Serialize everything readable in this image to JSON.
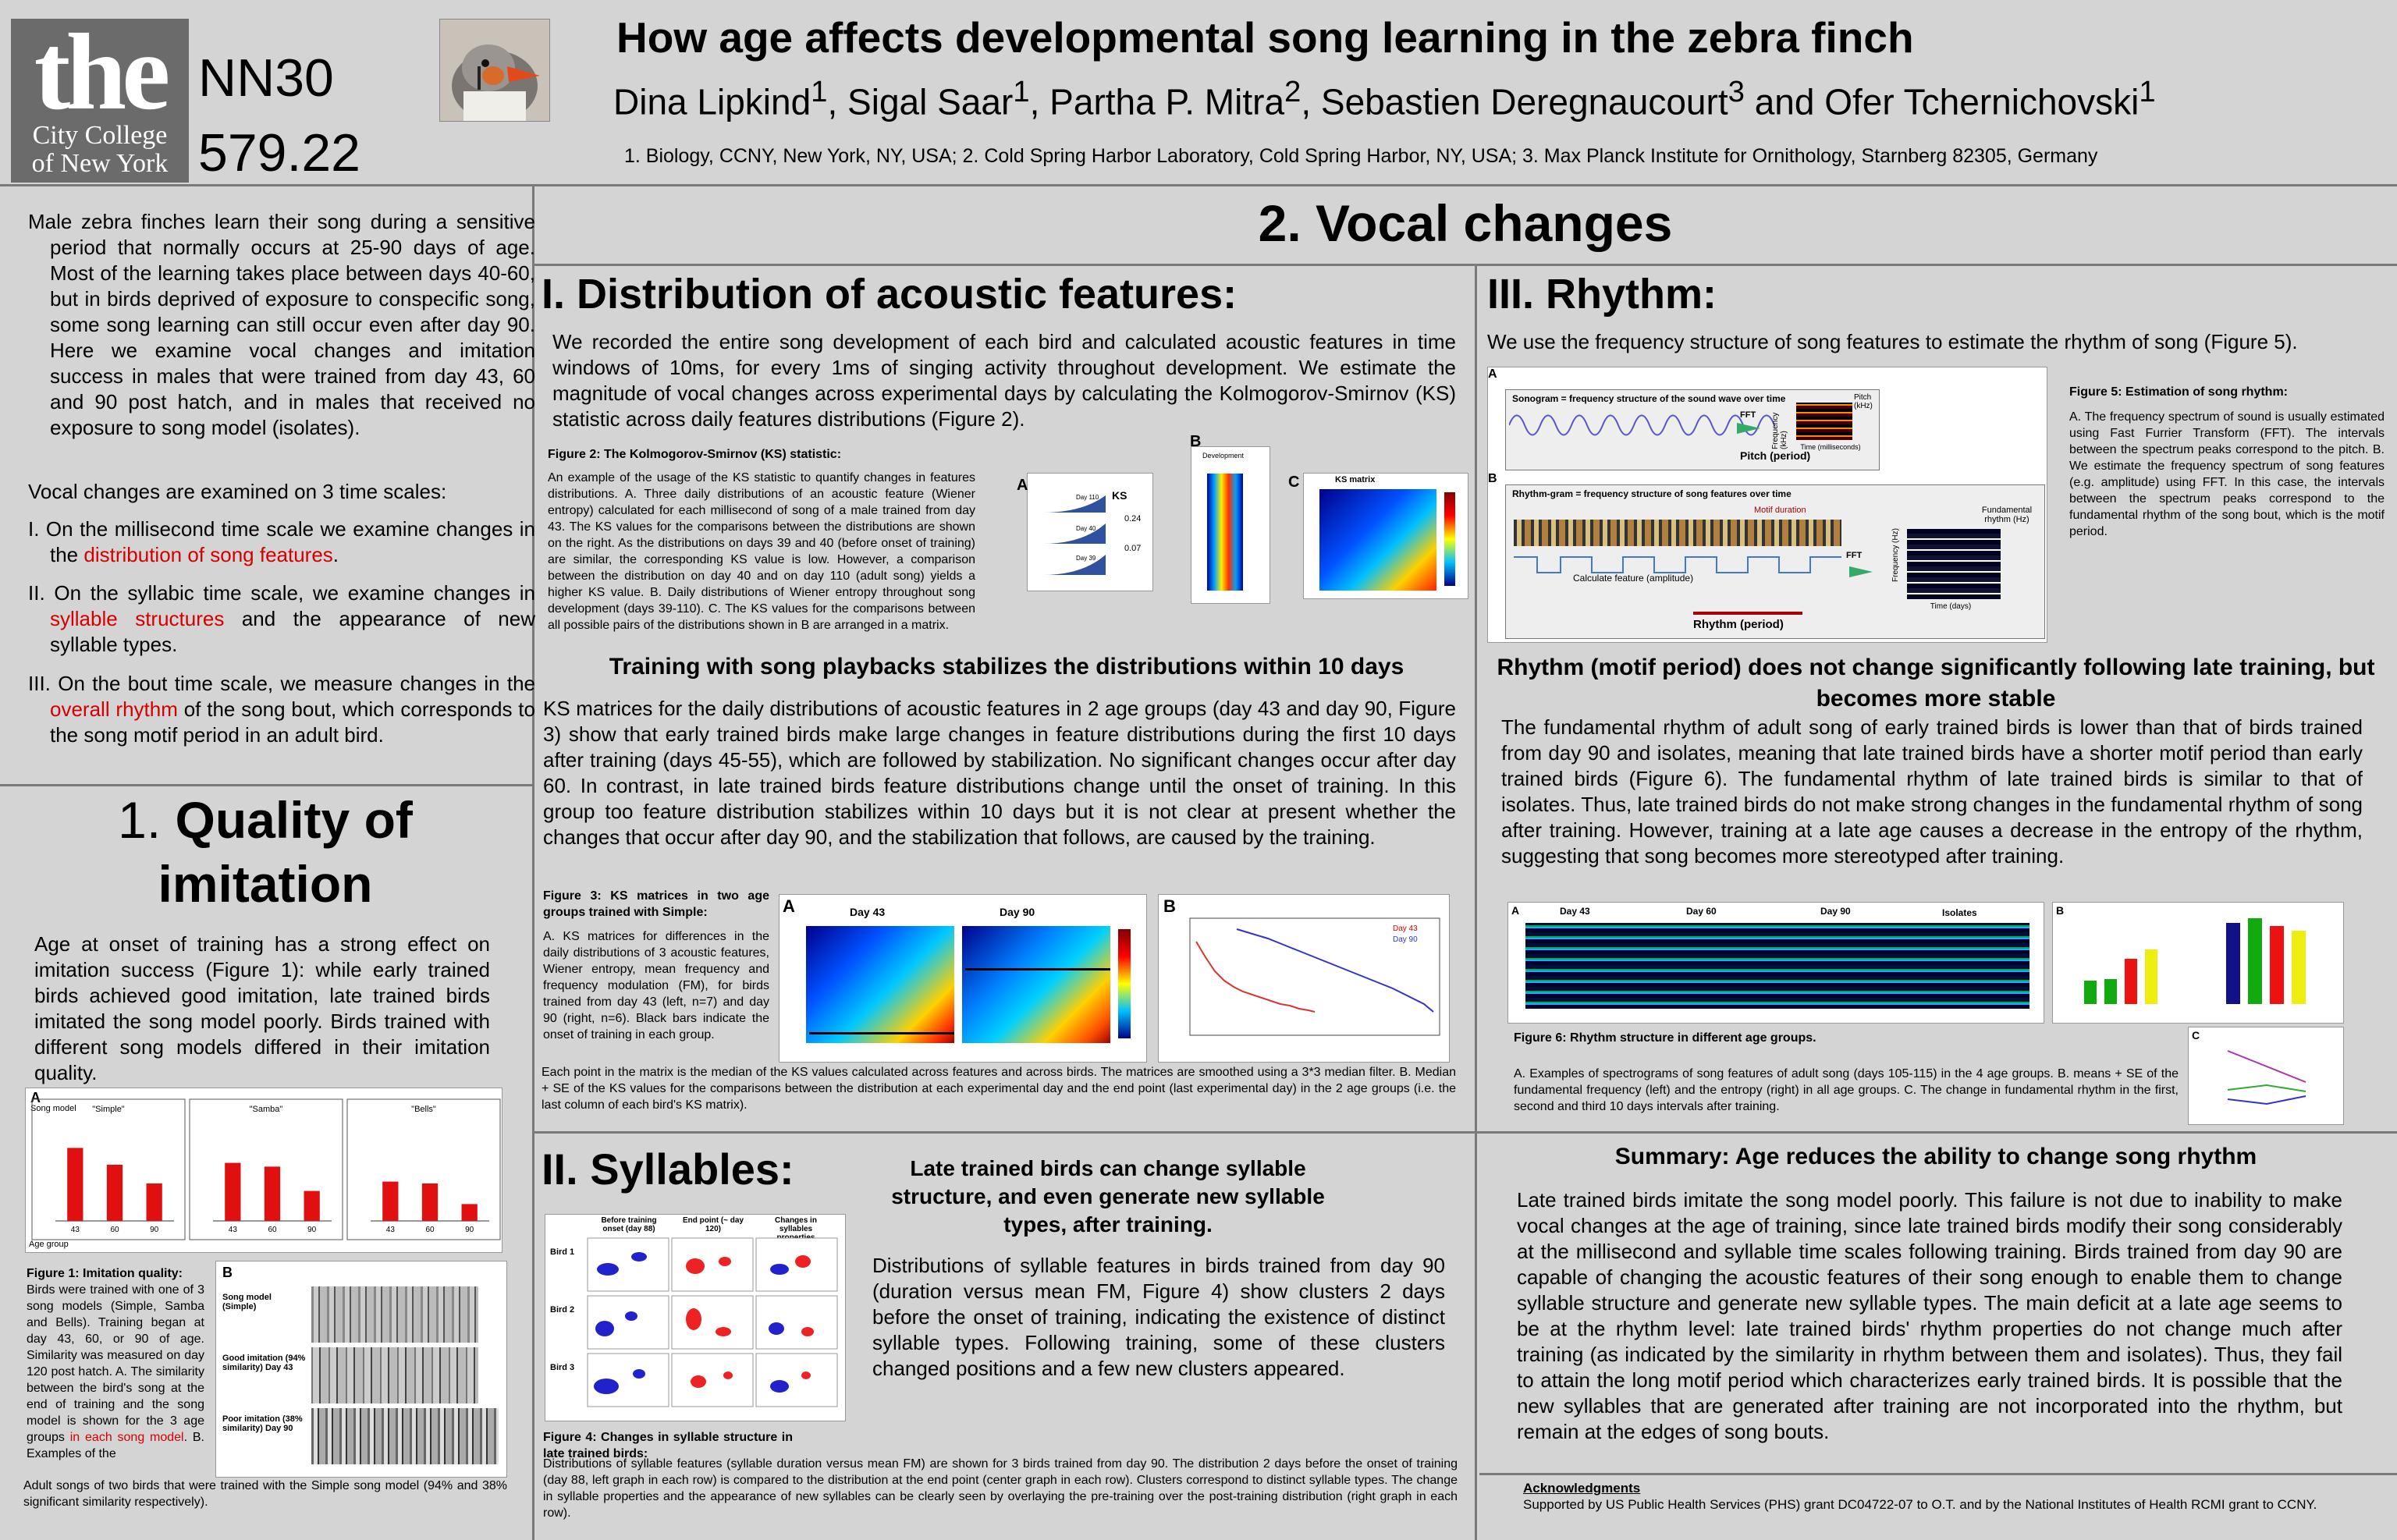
{
  "header": {
    "logo_big": "the",
    "logo_line1": "City College",
    "logo_line2": "of New York",
    "code1": "NN30",
    "code2": "579.22",
    "title": "How age affects developmental song learning in the zebra finch",
    "authors": "Dina Lipkind1, Sigal Saar1, Partha P. Mitra2, Sebastien Deregnaucourt3 and Ofer Tchernichovski1",
    "affiliations": "1. Biology, CCNY, New York, NY, USA; 2. Cold Spring Harbor Laboratory, Cold Spring Harbor, NY, USA; 3. Max Planck Institute for Ornithology, Starnberg 82305, Germany"
  },
  "intro": {
    "p1": "Male zebra finches learn their song during a sensitive period that normally occurs at 25-90 days of age. Most of the learning takes place between days 40-60, but in birds deprived of exposure to conspecific song, some song learning can still occur even after day 90. Here we examine vocal changes and imitation success in males that were trained from day 43, 60 and 90 post hatch, and in males that received no exposure to song model (isolates).",
    "p2": "Vocal changes are examined on 3 time scales:",
    "i1a": "I. On the millisecond time scale we examine changes in the ",
    "i1r": "distribution of song features",
    "i1b": ".",
    "i2a": "II. On the syllabic time scale, we examine changes in ",
    "i2r": "syllable structures",
    "i2b": " and the appearance of new syllable types.",
    "i3a": "III. On the bout time scale, we measure changes in the ",
    "i3r": "overall rhythm",
    "i3b": " of the song bout, which corresponds to the song motif period in an adult bird."
  },
  "quality": {
    "heading_num": "1.",
    "heading": "Quality of imitation",
    "text": "Age at onset of training has a strong effect on imitation success (Figure 1): while early trained birds achieved good imitation, late trained birds imitated the song model poorly. Birds trained with different song models differed in their imitation quality.",
    "fig_label_a": "A",
    "song_model": "Song model",
    "panels": [
      "\"Simple\"",
      "\"Samba\"",
      "\"Bells\""
    ],
    "xticks": [
      "43",
      "60",
      "90"
    ],
    "age_group": "Age group",
    "fig_label_b": "B",
    "b_rows": [
      "Song model (Simple)",
      "Good imitation (94% similarity) Day 43",
      "Poor imitation (38% similarity) Day 90"
    ],
    "cap_title": "Figure 1: Imitation quality:",
    "cap_a": "Birds were trained with one of 3 song models (Simple, Samba and Bells). Training began at day 43, 60, or 90 of age. Similarity was measured on day 120 post hatch. A. The similarity between the bird's song at the end of training and the song model is shown for the 3 age groups ",
    "cap_red": "in each song model",
    "cap_b": ". B. Examples of the",
    "cap_c": "Adult songs of two birds that were trained with the Simple song model (94% and 38% significant similarity respectively)."
  },
  "vocal_title": "2. Vocal changes",
  "distribution": {
    "heading": "I. Distribution of acoustic features:",
    "text": "We recorded the entire song development of each bird and calculated acoustic features in time windows of 10ms, for every 1ms of singing activity throughout development. We estimate the magnitude of vocal changes across experimental days by calculating the Kolmogorov-Smirnov (KS) statistic across daily features distributions (Figure 2).",
    "fig2_title": "Figure 2: The Kolmogorov-Smirnov (KS) statistic:",
    "fig2_text": "An example of the usage of the KS statistic to quantify changes in features distributions. A. Three daily distributions of an acoustic feature (Wiener entropy) calculated for each millisecond of song of a male trained from day 43. The KS values for the comparisons between the distributions are shown on the right. As the distributions on days 39 and 40 (before onset of training) are similar, the corresponding KS value is low. However, a comparison between the distribution on day 40 and on day 110 (adult song) yields a higher KS value. B. Daily distributions of Wiener entropy throughout song development (days 39-110). C. The KS values for the comparisons between all possible pairs of the distributions shown in B are arranged in a matrix.",
    "fig2_a": "A",
    "fig2_b": "B",
    "fig2_c": "C",
    "ks": "KS",
    "ks1": "0.24",
    "ks2": "0.07",
    "days": [
      "Day 110",
      "Day 40",
      "Day 39"
    ],
    "development": "Development",
    "ks_matrix": "KS matrix",
    "sub_heading": "Training with song playbacks stabilizes the distributions within 10 days",
    "text2": "KS matrices for the daily distributions of acoustic features in 2 age groups (day 43 and day 90, Figure 3) show that early trained birds make large changes in feature distributions during the first 10 days after training (days 45-55), which are followed by stabilization. No significant changes occur after day 60. In contrast, in late trained birds feature distributions change until the onset of training. In this group too feature distribution stabilizes within 10 days but it is not clear at present whether the changes that occur after day 90, and the stabilization that follows, are caused by the training.",
    "fig3_title": "Figure 3: KS matrices in two age groups trained with Simple:",
    "fig3_text": "A. KS matrices for differences in the daily distributions of 3 acoustic features, Wiener entropy, mean frequency and frequency modulation (FM), for birds trained from day 43 (left, n=7) and day 90 (right, n=6). Black bars indicate the onset of training in each group.",
    "fig3_text2": "Each point in the matrix is the median of the KS values calculated across features and across birds. The matrices are smoothed using a 3*3 median filter. B. Median + SE of the KS values for the comparisons between the distribution at each experimental day and the end point (last experimental day) in the 2 age groups (i.e. the last column of each bird's KS matrix).",
    "fig3_a": "A",
    "fig3_b": "B",
    "day43": "Day 43",
    "day90": "Day 90",
    "legend43": "Day 43",
    "legend90": "Day 90"
  },
  "syllables": {
    "heading": "II. Syllables:",
    "sub_heading": "Late trained birds can change syllable structure, and even generate new syllable types, after training.",
    "text": "Distributions of syllable features in birds trained from day 90 (duration versus mean FM, Figure 4) show clusters 2 days before the onset of training, indicating the existence of distinct syllable types. Following training, some of these clusters changed positions and a few new clusters appeared.",
    "col_heads": [
      "Before training onset (day 88)",
      "End point (~ day 120)",
      "Changes in syllables properties"
    ],
    "rows": [
      "Bird 1",
      "Bird 2",
      "Bird 3"
    ],
    "fig4_title": "Figure 4: Changes in syllable structure in late trained birds:",
    "fig4_text": "Distributions of syllable features (syllable duration versus mean FM) are shown for 3 birds trained from day 90. The distribution 2 days before the onset of training (day 88, left graph in each row) is compared to the distribution at the end point (center graph in each row). Clusters correspond to distinct syllable types. The change in syllable properties and the appearance of new syllables can be clearly seen by overlaying the pre-training over the post-training distribution (right graph in each row)."
  },
  "rhythm": {
    "heading": "III. Rhythm:",
    "text": "We use the frequency structure of song features to estimate the rhythm of song (Figure 5).",
    "fig5_a": "A",
    "fig5_b": "B",
    "sonogram_label": "Sonogram = frequency structure of the sound wave over time",
    "pitch_period": "Pitch (period)",
    "fft": "FFT",
    "freq": "Frequency (kHz)",
    "pitch": "Pitch (kHz)",
    "time_ms": "Time (milliseconds)",
    "rhythmgram_label": "Rhythm-gram = frequency structure of song features over time",
    "motif_duration": "Motif duration",
    "calc_feature": "Calculate feature (amplitude)",
    "rhythm_period": "Rhythm (period)",
    "fund_rhythm": "Fundamental rhythm (Hz)",
    "freq_hz": "Frequency (Hz)",
    "time_days": "Time (days)",
    "fig5_title": "Figure 5: Estimation of song rhythm:",
    "fig5_text": "A. The frequency spectrum of sound is usually estimated using Fast Furrier Transform (FFT). The intervals between the spectrum peaks correspond to the pitch. B. We estimate the frequency spectrum of song features (e.g. amplitude) using FFT. In this case, the intervals between the spectrum peaks correspond to the fundamental rhythm of the song bout, which is the motif period.",
    "sub_heading": "Rhythm (motif period) does not change significantly following late training, but becomes more stable",
    "text2": "The fundamental rhythm of adult song of early trained birds is lower than that of birds trained from day 90 and isolates, meaning that late trained birds have a shorter motif period than early trained birds (Figure 6). The fundamental rhythm of late trained birds is similar to that of isolates. Thus, late trained birds do not make strong changes in the fundamental rhythm of song after training. However, training at a late age causes a decrease in the entropy of the rhythm, suggesting that song becomes more stereotyped after training.",
    "fig6_groups": [
      "Day 43",
      "Day 60",
      "Day 90",
      "Isolates"
    ],
    "fig6_a": "A",
    "fig6_b": "B",
    "fig6_c": "C",
    "fig6_title": "Figure 6: Rhythm structure in different age groups.",
    "fig6_text": "A. Examples of spectrograms of song features of adult song (days 105-115) in the 4 age groups. B. means + SE of the fundamental frequency (left) and the entropy (right) in all age groups. C. The change in fundamental rhythm in the first, second and third 10 days intervals after training."
  },
  "summary": {
    "heading": "Summary: Age reduces the ability to change song rhythm",
    "text": "Late trained birds imitate the song model poorly. This failure is not due to inability to make vocal changes at the age of training, since late trained birds modify their song considerably at the millisecond and syllable time scales following training. Birds trained from day 90 are capable of changing the acoustic features of their song enough to enable them to change syllable structure and generate new syllable types. The main deficit at a late age seems to be at the rhythm level: late trained birds' rhythm properties do not change much after training (as indicated by the similarity in rhythm between them and isolates). Thus, they fail to attain the long motif period which characterizes early trained birds. It is possible that the new syllables that are generated after training are not incorporated into the rhythm, but remain at the edges of song bouts.",
    "ack_title": "Acknowledgments",
    "ack_text": "Supported by US Public Health Services (PHS) grant DC04722-07 to O.T. and by the National Institutes of Health RCMI grant to CCNY."
  },
  "chart_data": [
    {
      "type": "bar",
      "title": "\"Simple\"",
      "categories": [
        "43",
        "60",
        "90"
      ],
      "values": [
        78,
        60,
        40
      ],
      "ylim": [
        0,
        100
      ],
      "xlabel": "Age group"
    },
    {
      "type": "bar",
      "title": "\"Samba\"",
      "categories": [
        "43",
        "60",
        "90"
      ],
      "values": [
        62,
        58,
        32
      ],
      "ylim": [
        0,
        100
      ],
      "xlabel": "Age group"
    },
    {
      "type": "bar",
      "title": "\"Bells\"",
      "categories": [
        "43",
        "60",
        "90"
      ],
      "values": [
        42,
        40,
        18
      ],
      "ylim": [
        0,
        100
      ],
      "xlabel": "Age group"
    }
  ]
}
